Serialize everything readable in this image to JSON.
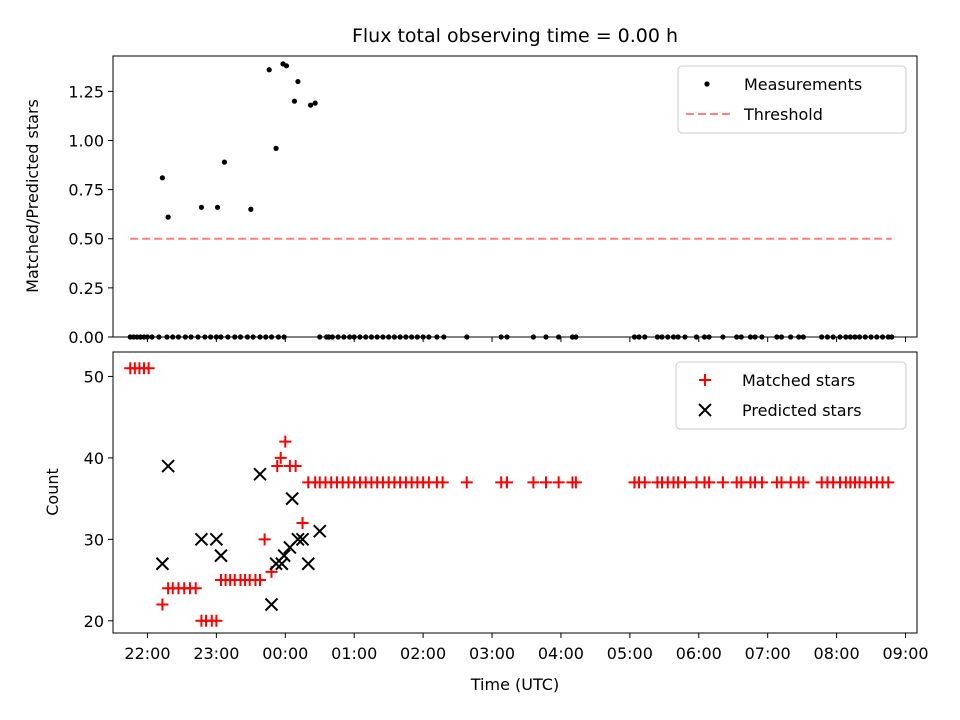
{
  "chart_data": [
    {
      "type": "scatter",
      "title": "Flux total observing time = 0.00 h",
      "xlabel": "",
      "ylabel": "Matched/Predicted stars",
      "xlim": [
        "21:30",
        "09:10"
      ],
      "ylim": [
        0,
        1.43
      ],
      "yticks": [
        "0.00",
        "0.25",
        "0.50",
        "0.75",
        "1.00",
        "1.25"
      ],
      "legend_position": "top-right",
      "series": [
        {
          "name": "Measurements",
          "color": "#000000",
          "marker": "dot",
          "x": [
            "21:45",
            "21:48",
            "21:51",
            "21:54",
            "21:57",
            "22:00",
            "22:04",
            "22:10",
            "22:17",
            "22:22",
            "22:27",
            "22:33",
            "22:38",
            "22:44",
            "22:50",
            "22:55",
            "23:00",
            "23:04",
            "23:10",
            "23:16",
            "23:21",
            "23:27",
            "23:32",
            "23:38",
            "23:43",
            "23:48",
            "23:54",
            "23:59",
            "22:13",
            "22:47",
            "23:01",
            "23:07",
            "23:30",
            "23:46",
            "23:52",
            "23:58",
            "00:01",
            "00:08",
            "00:11",
            "00:22",
            "00:26",
            "00:30",
            "00:36",
            "00:38",
            "00:41",
            "00:46",
            "00:51",
            "00:56",
            "01:00",
            "01:05",
            "01:10",
            "01:15",
            "01:20",
            "01:25",
            "01:30",
            "01:35",
            "01:40",
            "01:45",
            "01:50",
            "01:55",
            "02:00",
            "02:05",
            "02:12",
            "02:18",
            "02:38",
            "03:08",
            "03:13",
            "03:36",
            "03:47",
            "03:58",
            "04:10",
            "04:13",
            "05:04",
            "05:08",
            "05:13",
            "05:24",
            "05:28",
            "05:33",
            "05:38",
            "05:42",
            "05:48",
            "05:58",
            "06:05",
            "06:09",
            "06:21",
            "06:33",
            "06:37",
            "06:45",
            "06:49",
            "06:55",
            "07:08",
            "07:12",
            "07:20",
            "07:27",
            "07:31",
            "07:47",
            "07:52",
            "07:57",
            "08:03",
            "08:08",
            "08:12",
            "08:16",
            "08:20",
            "08:25",
            "08:30",
            "08:35",
            "08:40",
            "08:45",
            "08:48"
          ],
          "y": [
            0,
            0,
            0,
            0,
            0,
            0,
            0,
            0,
            0,
            0,
            0,
            0,
            0,
            0,
            0,
            0,
            0,
            0,
            0,
            0,
            0,
            0,
            0,
            0,
            0,
            0,
            0,
            0,
            0.81,
            0.66,
            0.66,
            0.89,
            0.65,
            1.36,
            0.96,
            1.39,
            1.38,
            1.2,
            1.3,
            1.18,
            1.19,
            0,
            0,
            0,
            0,
            0,
            0,
            0,
            0,
            0,
            0,
            0,
            0,
            0,
            0,
            0,
            0,
            0,
            0,
            0,
            0,
            0,
            0,
            0,
            0,
            0,
            0,
            0,
            0,
            0,
            0,
            0,
            0,
            0,
            0,
            0,
            0,
            0,
            0,
            0,
            0,
            0,
            0,
            0,
            0,
            0,
            0,
            0,
            0,
            0,
            0,
            0,
            0,
            0,
            0,
            0,
            0,
            0,
            0,
            0,
            0,
            0,
            0,
            0,
            0,
            0,
            0,
            0,
            0
          ],
          "note": "also point at 22:18 ~0.61"
        },
        {
          "name": "Threshold",
          "color": "#ff7f7f",
          "style": "dashed",
          "x": [
            "21:45",
            "08:48"
          ],
          "y": [
            0.5,
            0.5
          ]
        }
      ],
      "legend": [
        "Measurements",
        "Threshold"
      ]
    },
    {
      "type": "scatter",
      "title": "",
      "xlabel": "Time (UTC)",
      "ylabel": "Count",
      "xlim": [
        "21:30",
        "09:10"
      ],
      "ylim": [
        18.5,
        53
      ],
      "yticks": [
        "20",
        "30",
        "40",
        "50"
      ],
      "xticks": [
        "22:00",
        "23:00",
        "00:00",
        "01:00",
        "02:00",
        "03:00",
        "04:00",
        "05:00",
        "06:00",
        "07:00",
        "08:00",
        "09:00"
      ],
      "legend_position": "top-right",
      "series": [
        {
          "name": "Matched stars",
          "color": "#ff0000",
          "marker": "plus",
          "x": [
            "21:45",
            "21:49",
            "21:53",
            "21:57",
            "22:01",
            "22:13",
            "22:18",
            "22:22",
            "22:27",
            "22:32",
            "22:37",
            "22:42",
            "22:47",
            "22:51",
            "22:56",
            "23:00",
            "23:04",
            "23:08",
            "23:12",
            "23:16",
            "23:21",
            "23:25",
            "23:29",
            "23:34",
            "23:38",
            "23:42",
            "23:48",
            "23:53",
            "23:56",
            "00:00",
            "00:04",
            "00:09",
            "00:15",
            "00:20",
            "00:26",
            "00:30",
            "00:35",
            "00:40",
            "00:45",
            "00:50",
            "00:55",
            "01:00",
            "01:05",
            "01:10",
            "01:15",
            "01:20",
            "01:25",
            "01:30",
            "01:35",
            "01:40",
            "01:45",
            "01:50",
            "01:55",
            "02:00",
            "02:05",
            "02:12",
            "02:17",
            "02:38",
            "03:08",
            "03:13",
            "03:36",
            "03:47",
            "03:58",
            "04:10",
            "04:13",
            "05:04",
            "05:08",
            "05:13",
            "05:24",
            "05:28",
            "05:33",
            "05:38",
            "05:42",
            "05:48",
            "05:58",
            "06:05",
            "06:09",
            "06:21",
            "06:33",
            "06:37",
            "06:45",
            "06:49",
            "06:55",
            "07:08",
            "07:12",
            "07:20",
            "07:27",
            "07:31",
            "07:47",
            "07:52",
            "07:57",
            "08:03",
            "08:08",
            "08:12",
            "08:16",
            "08:20",
            "08:25",
            "08:30",
            "08:35",
            "08:40",
            "08:45"
          ],
          "y": [
            51,
            51,
            51,
            51,
            51,
            22,
            24,
            24,
            24,
            24,
            24,
            24,
            20,
            20,
            20,
            20,
            25,
            25,
            25,
            25,
            25,
            25,
            25,
            25,
            25,
            30,
            26,
            39,
            40,
            42,
            39,
            39,
            32,
            37,
            37,
            37,
            37,
            37,
            37,
            37,
            37,
            37,
            37,
            37,
            37,
            37,
            37,
            37,
            37,
            37,
            37,
            37,
            37,
            37,
            37,
            37,
            37,
            37,
            37,
            37,
            37,
            37,
            37,
            37,
            37,
            37,
            37,
            37,
            37,
            37,
            37,
            37,
            37,
            37,
            37,
            37,
            37,
            37,
            37,
            37,
            37,
            37,
            37,
            37,
            37,
            37,
            37,
            37,
            37,
            37,
            37,
            37,
            37,
            37,
            37,
            37,
            37,
            37,
            37,
            37,
            37
          ]
        },
        {
          "name": "Predicted stars",
          "color": "#000000",
          "marker": "x",
          "x": [
            "22:13",
            "22:18",
            "22:47",
            "23:00",
            "23:04",
            "23:38",
            "23:48",
            "23:52",
            "23:57",
            "23:59",
            "00:04",
            "00:06",
            "00:11",
            "00:15",
            "00:20",
            "00:30"
          ],
          "y": [
            27,
            39,
            30,
            30,
            28,
            38,
            22,
            27,
            27,
            28,
            29,
            35,
            30,
            30,
            27,
            31
          ]
        }
      ],
      "legend": [
        "Matched stars",
        "Predicted stars"
      ]
    }
  ]
}
